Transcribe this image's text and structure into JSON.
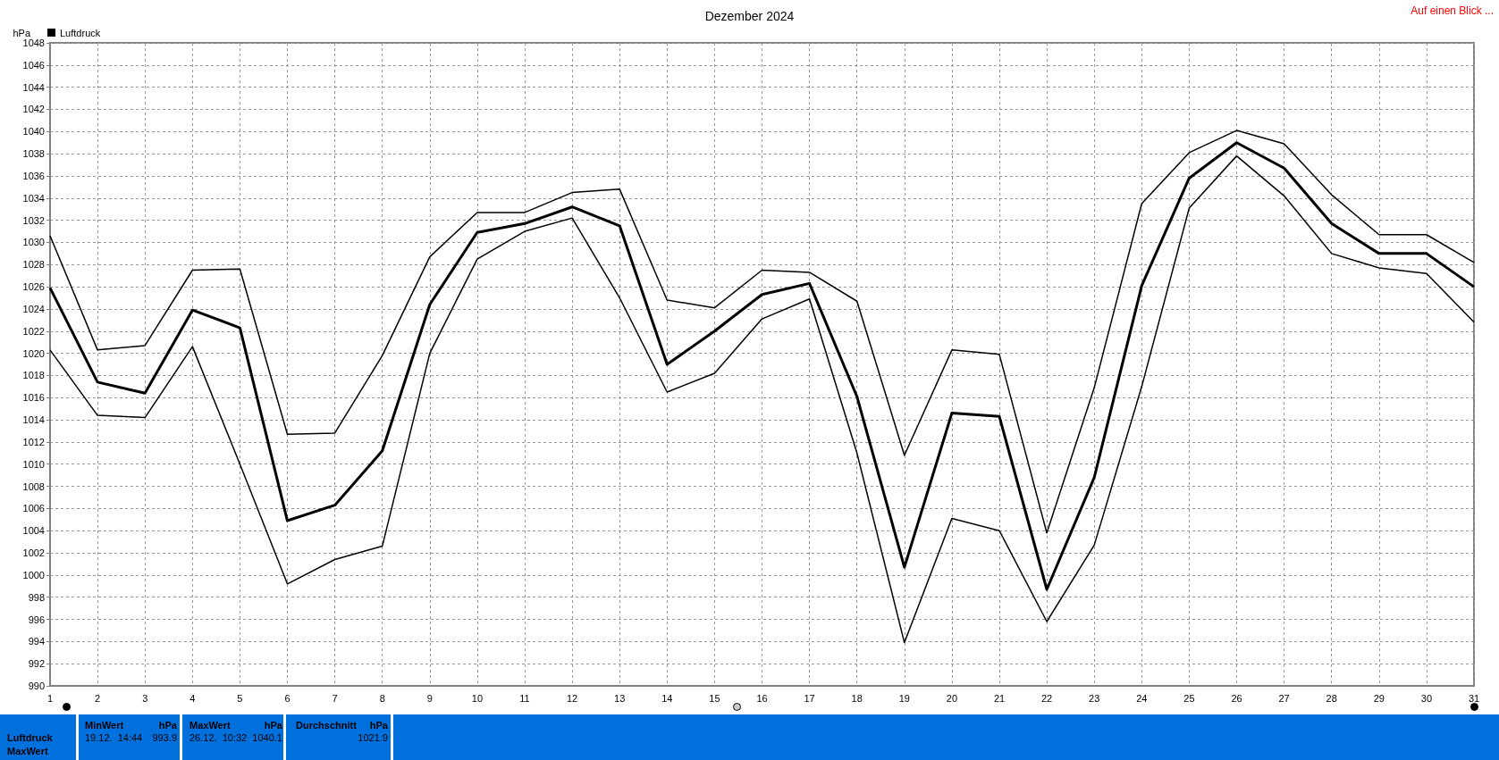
{
  "chart_data": {
    "type": "line",
    "title": "Dezember 2024",
    "ylabel": "hPa",
    "x": [
      1,
      2,
      3,
      4,
      5,
      6,
      7,
      8,
      9,
      10,
      11,
      12,
      13,
      14,
      15,
      16,
      17,
      18,
      19,
      20,
      21,
      22,
      23,
      24,
      25,
      26,
      27,
      28,
      29,
      30,
      31
    ],
    "series": [
      {
        "color": "#000000",
        "values": [
          1030.6,
          1020.3,
          1020.7,
          1027.5,
          1027.6,
          1012.7,
          1012.8,
          1019.8,
          1028.7,
          1032.7,
          1032.7,
          1034.5,
          1034.8,
          1024.8,
          1024.1,
          1027.5,
          1027.3,
          1024.7,
          1010.8,
          1020.3,
          1019.9,
          1003.8,
          1016.9,
          1033.5,
          1038.1,
          1040.1,
          1038.9,
          1034.3,
          1030.7,
          1030.7,
          1028.2
        ]
      },
      {
        "name": "Luftdruck",
        "color": "#000000",
        "values": [
          1025.9,
          1017.4,
          1016.4,
          1023.9,
          1022.3,
          1004.9,
          1006.3,
          1011.2,
          1024.4,
          1030.9,
          1031.7,
          1033.2,
          1031.5,
          1019.0,
          1022.0,
          1025.3,
          1026.3,
          1016.1,
          1000.7,
          1014.6,
          1014.3,
          998.7,
          1008.8,
          1026.1,
          1035.8,
          1039.0,
          1036.7,
          1031.7,
          1029.0,
          1029.0,
          1026.0
        ]
      },
      {
        "color": "#000000",
        "values": [
          1020.3,
          1014.4,
          1014.2,
          1020.6,
          1010.0,
          999.2,
          1001.4,
          1002.6,
          1020.0,
          1028.5,
          1031.0,
          1032.2,
          1025.0,
          1016.5,
          1018.2,
          1023.1,
          1024.9,
          1011.0,
          993.9,
          1005.1,
          1004.0,
          995.8,
          1002.7,
          1017.0,
          1033.1,
          1037.8,
          1034.2,
          1029.0,
          1027.7,
          1027.2,
          1022.8
        ]
      }
    ],
    "xlim": [
      1,
      31
    ],
    "xticks": [
      1,
      2,
      3,
      4,
      5,
      6,
      7,
      8,
      9,
      10,
      11,
      12,
      13,
      14,
      15,
      16,
      17,
      18,
      19,
      20,
      21,
      22,
      23,
      24,
      25,
      26,
      27,
      28,
      29,
      30,
      31
    ],
    "ylim": [
      990,
      1048
    ],
    "yticks": [
      990,
      992,
      994,
      996,
      998,
      1000,
      1002,
      1004,
      1006,
      1008,
      1010,
      1012,
      1014,
      1016,
      1018,
      1020,
      1022,
      1024,
      1026,
      1028,
      1030,
      1032,
      1034,
      1036,
      1038,
      1040,
      1042,
      1044,
      1046,
      1048
    ],
    "grid": true,
    "legend": "top left",
    "marker": "none",
    "line_style": "solid",
    "annotations": [
      "Auf einen Blick ...",
      "Luftdruck",
      "MaxWert",
      "MinWert",
      "hPa",
      "19.12.  14:44",
      "993.9",
      "MaxWert",
      "hPa",
      "26.12.  10:32",
      "1040.1",
      "Durchschnitt",
      "hPa",
      "1021.9"
    ]
  }
}
